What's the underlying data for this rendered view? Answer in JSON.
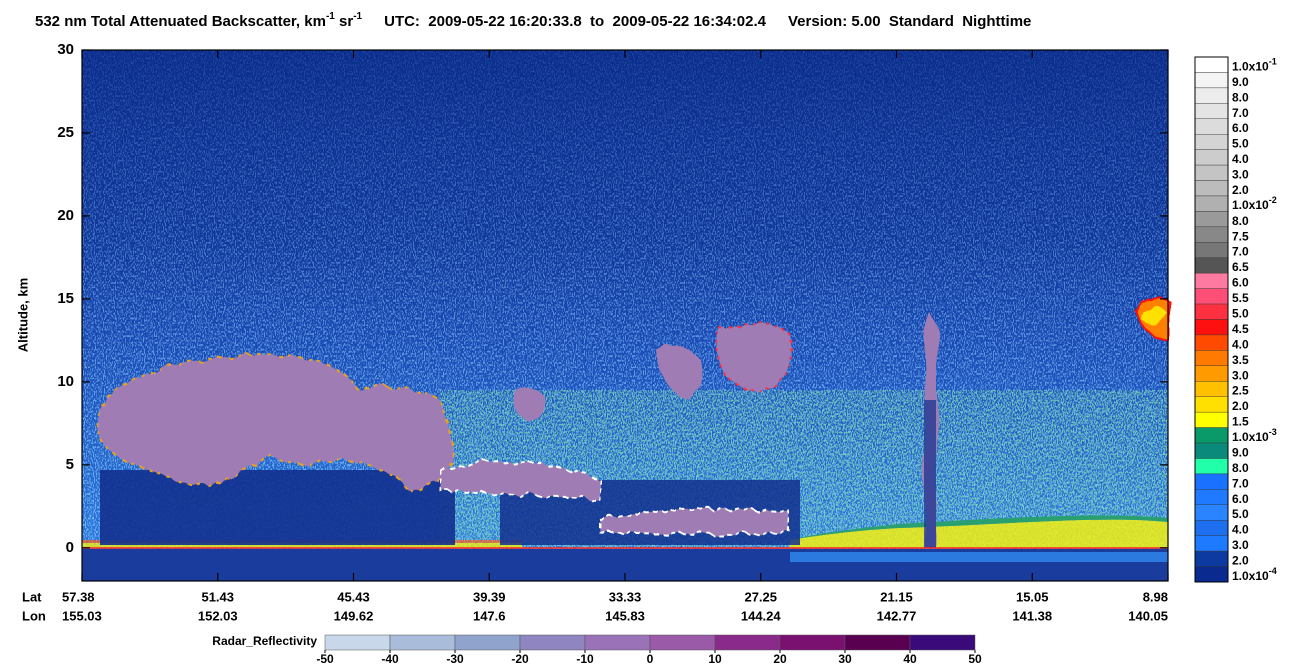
{
  "chart_data": {
    "type": "curtain",
    "title": {
      "text": "532 nm Total Attenuated Backscatter, km",
      "exp1": "-1",
      "mid": " sr",
      "exp2": "-1"
    },
    "utc": "UTC:  2009-05-22 16:20:33.8  to  2009-05-22 16:34:02.4",
    "version": "Version: 5.00  Standard  Nighttime",
    "y_label": "Altitude, km",
    "ylim": [
      -2,
      30
    ],
    "yticks": [
      0,
      5,
      10,
      15,
      20,
      25,
      30
    ],
    "x_rows": [
      {
        "name": "Lat",
        "labels": [
          57.38,
          51.43,
          45.43,
          39.39,
          33.33,
          27.25,
          21.15,
          15.05,
          8.98
        ]
      },
      {
        "name": "Lon",
        "labels": [
          155.03,
          152.03,
          149.62,
          147.6,
          145.83,
          144.24,
          142.77,
          141.38,
          140.05
        ]
      }
    ],
    "colorbar": {
      "labels": [
        {
          "mantissa": "1.0x10",
          "exp": "-1"
        },
        "9.0",
        "8.0",
        "7.0",
        "6.0",
        "5.0",
        "4.0",
        "3.0",
        "2.0",
        {
          "mantissa": "1.0x10",
          "exp": "-2"
        },
        "8.0",
        "7.5",
        "7.0",
        "6.5",
        "6.0",
        "5.5",
        "5.0",
        "4.5",
        "4.0",
        "3.5",
        "3.0",
        "2.5",
        "2.0",
        "1.5",
        {
          "mantissa": "1.0x10",
          "exp": "-3"
        },
        "9.0",
        "8.0",
        "7.0",
        "6.0",
        "5.0",
        "4.0",
        "3.0",
        "2.0",
        {
          "mantissa": "1.0x10",
          "exp": "-4"
        }
      ],
      "colors": [
        "#ffffff",
        "#f4f4f4",
        "#ececec",
        "#e4e4e4",
        "#dcdcdc",
        "#d4d4d4",
        "#cccccc",
        "#c4c4c4",
        "#bcbcbc",
        "#b0b0b0",
        "#9a9a9a",
        "#888888",
        "#777777",
        "#555555",
        "#ff7aa0",
        "#ff4f77",
        "#ff3040",
        "#ff1010",
        "#ff4a00",
        "#ff7a00",
        "#ff9a00",
        "#ffc000",
        "#ffe000",
        "#ffff00",
        "#0a9a6a",
        "#0a8a7a",
        "#22ffaa",
        "#1a70ff",
        "#1f7aff",
        "#2a84ff",
        "#1e6ff0",
        "#1e7aff",
        "#0d3aa0",
        "#0a2a90"
      ]
    },
    "radar_bar": {
      "label": "Radar_Reflectivity",
      "lim": [
        -50,
        50
      ],
      "ticks": [
        -50,
        -40,
        -30,
        -20,
        -10,
        0,
        10,
        20,
        30,
        40,
        50
      ],
      "colors": [
        "#c8d8ea",
        "#a9bddb",
        "#8fa3cc",
        "#8f85c0",
        "#9a72b8",
        "#9a5aa8",
        "#8a2a8a",
        "#7a1070",
        "#5a0050",
        "#3a0a7a"
      ]
    }
  }
}
